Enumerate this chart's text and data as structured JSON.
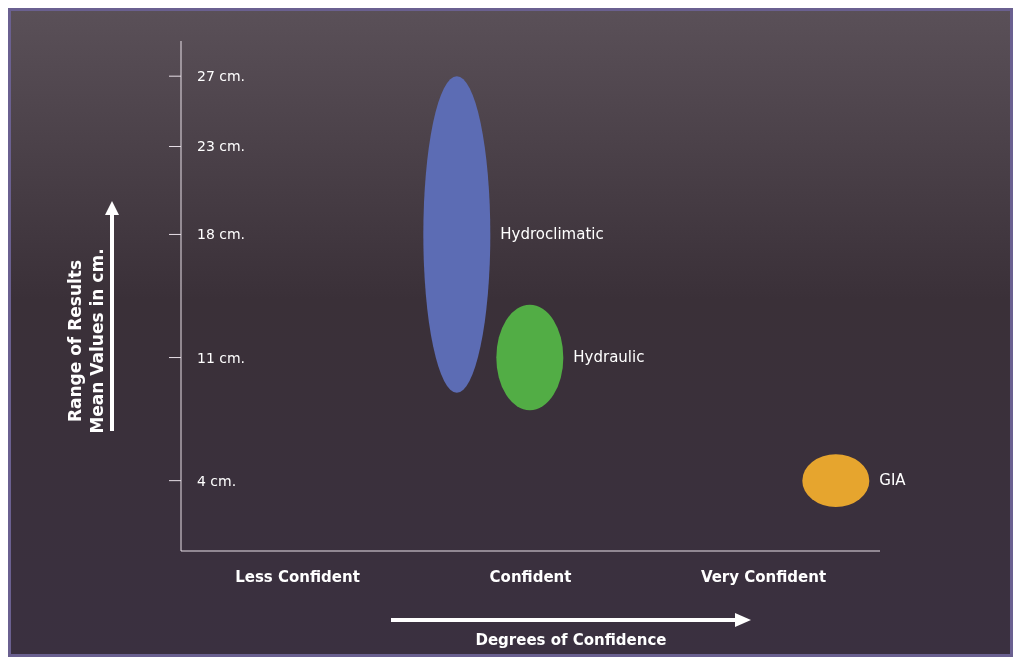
{
  "chart_data": {
    "type": "bar",
    "xlabel": "Degrees of Confidence",
    "ylabel": "Range of Results\nMean Values in cm.",
    "categories": [
      "Less Confident",
      "Confident",
      "Very Confident"
    ],
    "series": [
      {
        "name": "Hydroclimatic",
        "color": "#5c6cb4",
        "base": [
          null,
          9,
          null
        ],
        "values": [
          null,
          18,
          null
        ]
      },
      {
        "name": "Hydraulic",
        "color": "#52ad45",
        "base": [
          null,
          8,
          null
        ],
        "values": [
          null,
          6,
          null
        ]
      },
      {
        "name": "GIA",
        "color": "#e6a52e",
        "base": [
          null,
          null,
          2.5
        ],
        "values": [
          null,
          null,
          3
        ]
      }
    ],
    "ylim": [
      0,
      29
    ],
    "yticks": [
      {
        "value": 4,
        "label": "4 cm."
      },
      {
        "value": 11,
        "label": "11 cm."
      },
      {
        "value": 18,
        "label": "18 cm."
      },
      {
        "value": 23,
        "label": "23 cm."
      },
      {
        "value": 27,
        "label": "27 cm."
      }
    ],
    "grid": false,
    "legend": false
  }
}
